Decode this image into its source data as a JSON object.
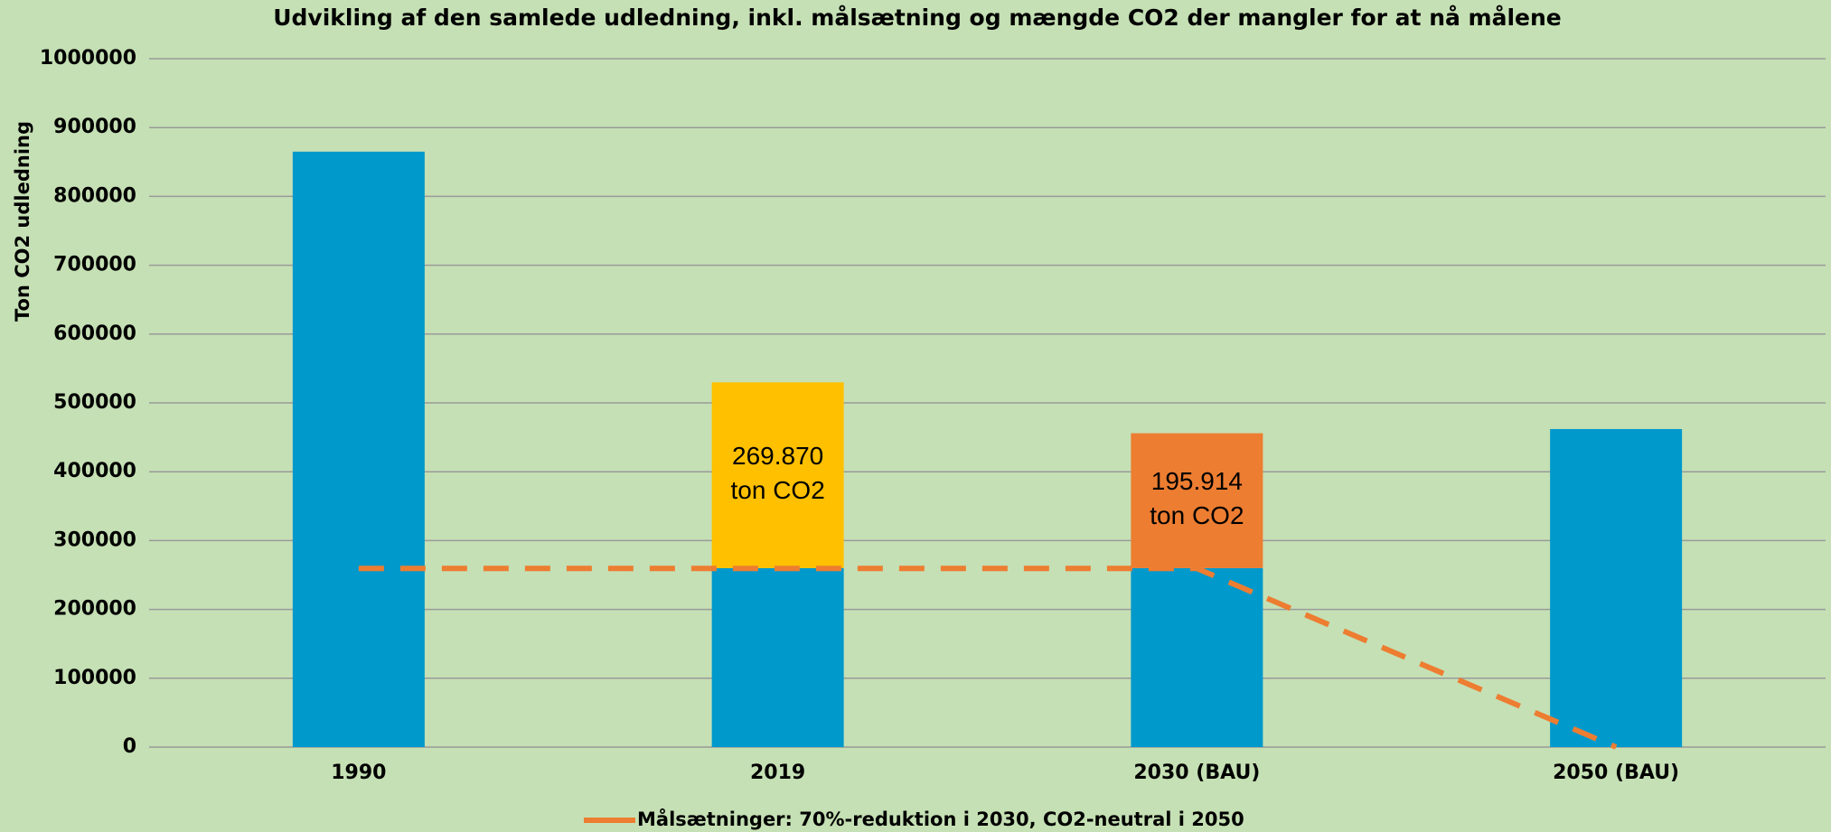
{
  "chart_data": {
    "type": "bar",
    "stacked": true,
    "title": "Udvikling af den samlede udledning, inkl. målsætning og mængde CO2 der mangler for at nå målene",
    "y_label": "Ton CO2 udledning",
    "categories": [
      "1990",
      "2019",
      "2030 (BAU)",
      "2050 (BAU)"
    ],
    "series": [
      {
        "color": "#0099cc",
        "values": [
          865000,
          260000,
          260000,
          462000
        ]
      },
      {
        "color": "#ffc000",
        "values": [
          null,
          269870,
          null,
          null
        ],
        "value_labels": [
          null,
          "269.870 ton CO2",
          null,
          null
        ]
      },
      {
        "color": "#ed7d31",
        "values": [
          null,
          null,
          195914,
          null
        ],
        "value_labels": [
          null,
          null,
          "195.914 ton CO2",
          null
        ]
      },
      {
        "name": "Målsætninger: 70%-reduktion i 2030, CO2-neutral i 2050",
        "type": "line",
        "dashed": true,
        "color": "#ed7d31",
        "values": [
          259500,
          259500,
          259500,
          0
        ]
      }
    ],
    "ylim": [
      0,
      1000000
    ],
    "yticks": [
      0,
      100000,
      200000,
      300000,
      400000,
      500000,
      600000,
      700000,
      800000,
      900000,
      1000000
    ],
    "grid": true,
    "legend": "bottom"
  }
}
